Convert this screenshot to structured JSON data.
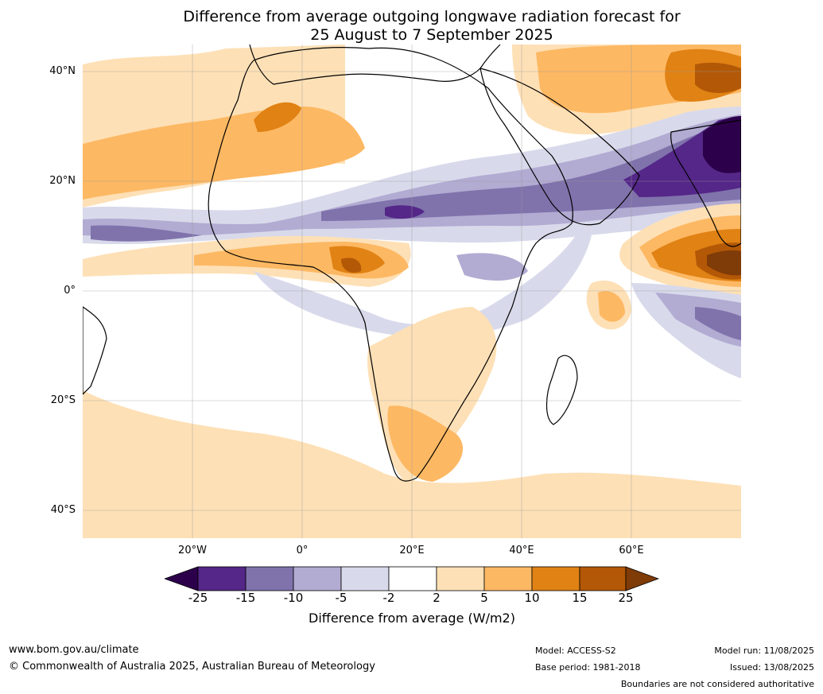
{
  "title_line1": "Difference from average outgoing longwave radiation forecast for",
  "title_line2": "25 August to 7 September 2025",
  "map": {
    "lat_ticks": [
      "40°N",
      "20°N",
      "0°",
      "20°S",
      "40°S"
    ],
    "lon_ticks": [
      "20°W",
      "0°",
      "20°E",
      "40°E",
      "60°E"
    ]
  },
  "colorbar": {
    "ticks": [
      "-25",
      "-15",
      "-10",
      "-5",
      "-2",
      "2",
      "5",
      "10",
      "15",
      "25"
    ],
    "colors": [
      "#2d004b",
      "#542788",
      "#8073ac",
      "#b2abd2",
      "#d8daeb",
      "#ffffff",
      "#fee0b6",
      "#fdb863",
      "#e08214",
      "#b35806",
      "#7f3b08"
    ],
    "label": "Difference from average (W/m2)"
  },
  "footer": {
    "website": "www.bom.gov.au/climate",
    "copyright": "© Commonwealth of Australia 2025, Australian Bureau of Meteorology",
    "model": "Model: ACCESS-S2",
    "base_period": "Base period: 1981-2018",
    "model_run": "Model run: 11/08/2025",
    "issued": "Issued: 13/08/2025",
    "disclaimer": "Boundaries are not considered authoritative"
  }
}
